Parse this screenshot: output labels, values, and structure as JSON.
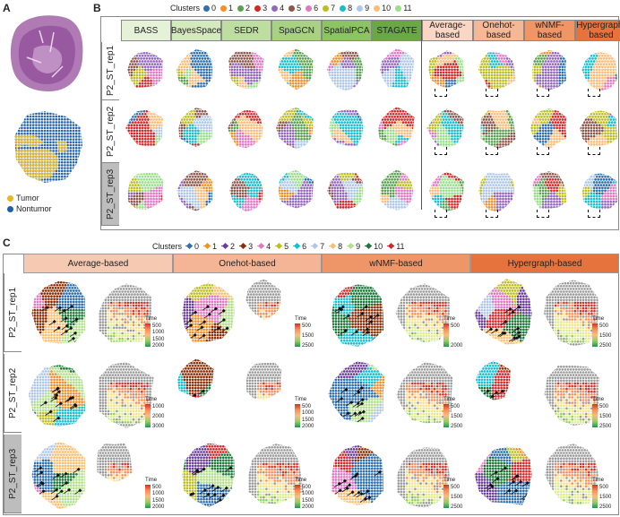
{
  "panel_a_letter": "A",
  "panel_b_letter": "B",
  "panel_c_letter": "C",
  "legend_tumor": "Tumor",
  "legend_nontumor": "Nontumor",
  "colors": {
    "tumor": "#e8b722",
    "nontumor": "#1d5fa6"
  },
  "clusters_title": "Clusters",
  "clusters": [
    {
      "id": "0",
      "color": "#2e6fae"
    },
    {
      "id": "1",
      "color": "#f28e2b"
    },
    {
      "id": "2",
      "color": "#59a14f"
    },
    {
      "id": "3",
      "color": "#d62728"
    },
    {
      "id": "4",
      "color": "#9467bd"
    },
    {
      "id": "5",
      "color": "#8c564b"
    },
    {
      "id": "6",
      "color": "#e377c2"
    },
    {
      "id": "7",
      "color": "#bcbd22"
    },
    {
      "id": "8",
      "color": "#17becf"
    },
    {
      "id": "9",
      "color": "#aec7e8"
    },
    {
      "id": "10",
      "color": "#ffbb78"
    },
    {
      "id": "11",
      "color": "#98df8a"
    }
  ],
  "clusters_c": [
    {
      "id": "0",
      "color": "#2e6fae"
    },
    {
      "id": "1",
      "color": "#f28e2b"
    },
    {
      "id": "2",
      "color": "#6a3d9a"
    },
    {
      "id": "3",
      "color": "#8c2d04"
    },
    {
      "id": "4",
      "color": "#e377c2"
    },
    {
      "id": "5",
      "color": "#bcbd22"
    },
    {
      "id": "6",
      "color": "#17becf"
    },
    {
      "id": "7",
      "color": "#aec7e8"
    },
    {
      "id": "8",
      "color": "#fdbf6f"
    },
    {
      "id": "9",
      "color": "#b2df8a"
    },
    {
      "id": "10",
      "color": "#1b7837"
    },
    {
      "id": "11",
      "color": "#d62728"
    }
  ],
  "b_methods": [
    {
      "label": "BASS",
      "bg": "#e6f2d8"
    },
    {
      "label": "BayesSpace",
      "bg": "#d4e9bd"
    },
    {
      "label": "SEDR",
      "bg": "#bedda0"
    },
    {
      "label": "SpaGCN",
      "bg": "#a8d184"
    },
    {
      "label": "SpatialPCA",
      "bg": "#8cc363"
    },
    {
      "label": "STAGATE",
      "bg": "#6aa845"
    },
    {
      "label": "Average-\nbased",
      "bg": "#f9d7c4"
    },
    {
      "label": "Onehot-\nbased",
      "bg": "#f5b795"
    },
    {
      "label": "wNMF-\nbased",
      "bg": "#ef9566"
    },
    {
      "label": "Hypergraph-\nbased",
      "bg": "#e8723c"
    }
  ],
  "rows": [
    "P2_ST_rep1",
    "P2_ST_rep2",
    "P2_ST_rep3"
  ],
  "c_methods": [
    {
      "label": "Average-based",
      "bg": "#f6c9b3"
    },
    {
      "label": "Onehot-based",
      "bg": "#f3b596"
    },
    {
      "label": "wNMF-based",
      "bg": "#ee9667"
    },
    {
      "label": "Hypergraph-based",
      "bg": "#e6733d"
    }
  ],
  "time_title": "Time",
  "time_scales": [
    [
      [
        "500",
        "1000",
        "1500",
        "2000"
      ],
      [
        "500",
        "1500",
        "2500"
      ],
      [
        "500",
        "2000"
      ],
      [
        "500",
        "1500",
        "2500"
      ]
    ],
    [
      [
        "1000",
        "2000",
        "3000"
      ],
      [
        "500",
        "1000",
        "1500",
        "2000"
      ],
      [
        "500",
        "1500",
        "2500"
      ],
      [
        "500",
        "1500",
        "2500"
      ]
    ],
    [
      [
        "500",
        "1000",
        "1500",
        "2000"
      ],
      [
        "500",
        "1000",
        "1500",
        "2000"
      ],
      [
        "500",
        "1500",
        "2500"
      ],
      [
        "500",
        "1500",
        "2500"
      ]
    ]
  ]
}
